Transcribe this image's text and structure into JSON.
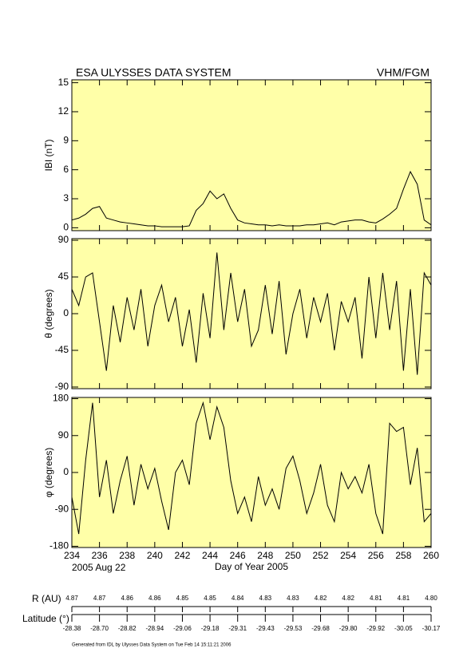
{
  "header": {
    "title": "ESA ULYSSES DATA SYSTEM",
    "instrument": "VHM/FGM"
  },
  "chart_data": [
    {
      "type": "line",
      "ylabel": "IBI (nT)",
      "color": "#000000",
      "background": "#ffffa8",
      "x": [
        234,
        234.5,
        235,
        235.5,
        236,
        236.5,
        237,
        237.5,
        238,
        238.5,
        239,
        239.5,
        240,
        240.5,
        241,
        241.5,
        242,
        242.5,
        243,
        243.5,
        244,
        244.5,
        245,
        245.5,
        246,
        246.5,
        247,
        247.5,
        248,
        248.5,
        249,
        249.5,
        250,
        250.5,
        251,
        251.5,
        252,
        252.5,
        253,
        253.5,
        254,
        254.5,
        255,
        255.5,
        256,
        256.5,
        257,
        257.5,
        258,
        258.5,
        259,
        259.5,
        260
      ],
      "values": [
        0.8,
        1.0,
        1.4,
        2.0,
        2.2,
        1.0,
        0.8,
        0.6,
        0.5,
        0.4,
        0.3,
        0.2,
        0.2,
        0.1,
        0.1,
        0.1,
        0.1,
        0.2,
        1.8,
        2.5,
        3.8,
        3.0,
        3.5,
        2.0,
        0.8,
        0.5,
        0.4,
        0.3,
        0.3,
        0.2,
        0.3,
        0.2,
        0.2,
        0.2,
        0.3,
        0.3,
        0.4,
        0.5,
        0.3,
        0.6,
        0.7,
        0.8,
        0.8,
        0.6,
        0.5,
        0.9,
        1.4,
        2.0,
        4.0,
        5.8,
        4.5,
        0.8,
        0.3
      ],
      "xlim": [
        234,
        260
      ],
      "ylim": [
        -0.3,
        15.3
      ],
      "yticks": [
        0,
        3,
        6,
        9,
        12,
        15
      ]
    },
    {
      "type": "line",
      "ylabel": "θ (degrees)",
      "color": "#000000",
      "background": "#ffffa8",
      "x": [
        234,
        234.5,
        235,
        235.5,
        236,
        236.5,
        237,
        237.5,
        238,
        238.5,
        239,
        239.5,
        240,
        240.5,
        241,
        241.5,
        242,
        242.5,
        243,
        243.5,
        244,
        244.5,
        245,
        245.5,
        246,
        246.5,
        247,
        247.5,
        248,
        248.5,
        249,
        249.5,
        250,
        250.5,
        251,
        251.5,
        252,
        252.5,
        253,
        253.5,
        254,
        254.5,
        255,
        255.5,
        256,
        256.5,
        257,
        257.5,
        258,
        258.5,
        259,
        259.5,
        260
      ],
      "values": [
        30,
        10,
        45,
        50,
        -10,
        -70,
        10,
        -35,
        20,
        -20,
        30,
        -40,
        10,
        35,
        -10,
        20,
        -40,
        5,
        -60,
        25,
        -30,
        75,
        -20,
        50,
        -10,
        30,
        -40,
        -20,
        35,
        -25,
        40,
        -50,
        0,
        30,
        -30,
        20,
        -10,
        25,
        -45,
        15,
        -10,
        20,
        -55,
        45,
        -30,
        50,
        -20,
        40,
        -70,
        30,
        -75,
        50,
        35
      ],
      "xlim": [
        234,
        260
      ],
      "ylim": [
        -92,
        92
      ],
      "yticks": [
        -90,
        -45,
        0,
        45,
        90
      ]
    },
    {
      "type": "line",
      "ylabel": "φ (degrees)",
      "xlabel": "Day of Year 2005",
      "start_date": "2005 Aug 22",
      "color": "#000000",
      "background": "#ffffa8",
      "x": [
        234,
        234.5,
        235,
        235.5,
        236,
        236.5,
        237,
        237.5,
        238,
        238.5,
        239,
        239.5,
        240,
        240.5,
        241,
        241.5,
        242,
        242.5,
        243,
        243.5,
        244,
        244.5,
        245,
        245.5,
        246,
        246.5,
        247,
        247.5,
        248,
        248.5,
        249,
        249.5,
        250,
        250.5,
        251,
        251.5,
        252,
        252.5,
        253,
        253.5,
        254,
        254.5,
        255,
        255.5,
        256,
        256.5,
        257,
        257.5,
        258,
        258.5,
        259,
        259.5,
        260
      ],
      "values": [
        -60,
        -150,
        30,
        170,
        -60,
        30,
        -100,
        -20,
        40,
        -80,
        20,
        -40,
        10,
        -70,
        -140,
        0,
        30,
        -30,
        120,
        170,
        80,
        160,
        110,
        -20,
        -100,
        -60,
        -120,
        -10,
        -80,
        -40,
        -90,
        10,
        40,
        -20,
        -100,
        -50,
        20,
        -80,
        -120,
        0,
        -40,
        -10,
        -50,
        20,
        -100,
        -150,
        120,
        100,
        110,
        -30,
        60,
        -120,
        -100
      ],
      "xlim": [
        234,
        260
      ],
      "ylim": [
        -183,
        183
      ],
      "yticks": [
        -180,
        -90,
        0,
        90,
        180
      ],
      "xticks": [
        234,
        236,
        238,
        240,
        242,
        244,
        246,
        248,
        250,
        252,
        254,
        256,
        258,
        260
      ]
    }
  ],
  "orbit": {
    "r_label": "R (AU)",
    "r": [
      "4.87",
      "4.87",
      "4.86",
      "4.86",
      "4.85",
      "4.85",
      "4.84",
      "4.83",
      "4.83",
      "4.82",
      "4.82",
      "4.81",
      "4.81",
      "4.80"
    ],
    "lat_label": "Latitude (°)",
    "lat": [
      "-28.38",
      "-28.70",
      "-28.82",
      "-28.94",
      "-29.06",
      "-29.18",
      "-29.31",
      "-29.43",
      "-29.53",
      "-29.68",
      "-29.80",
      "-29.92",
      "-30.05",
      "-30.17"
    ]
  },
  "footer": "Generated from IDL by Ulysses Data System on Tue Feb 14 15:11:21 2006"
}
